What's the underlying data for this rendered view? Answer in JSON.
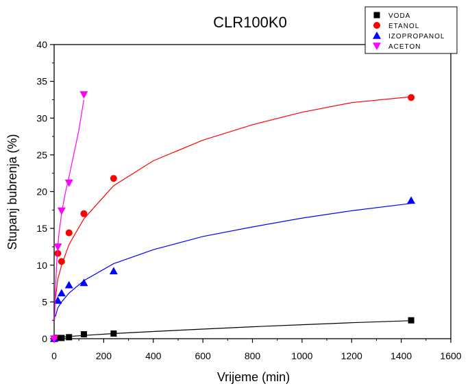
{
  "chart_data": {
    "type": "scatter",
    "title": "CLR100K0",
    "xlabel": "Vrijeme (min)",
    "ylabel": "Stupanj bubrenja (%)",
    "xlim": [
      0,
      1600
    ],
    "ylim": [
      0,
      40
    ],
    "x_ticks": [
      "0",
      "200",
      "400",
      "600",
      "800",
      "1000",
      "1200",
      "1400",
      "1600"
    ],
    "y_ticks": [
      "0",
      "5",
      "10",
      "15",
      "20",
      "25",
      "30",
      "35",
      "40"
    ],
    "grid": false,
    "legend_position": "top-right",
    "series": [
      {
        "name": "VODA",
        "color": "#000000",
        "marker": "square",
        "x": [
          0,
          15,
          30,
          60,
          120,
          240,
          1440
        ],
        "y": [
          0,
          0.1,
          0.1,
          0.2,
          0.6,
          0.7,
          2.5
        ],
        "fit_x": [
          5,
          20,
          60,
          120,
          240,
          400,
          600,
          800,
          1000,
          1200,
          1440
        ],
        "fit_y": [
          0.1,
          0.17,
          0.3,
          0.45,
          0.7,
          0.98,
          1.31,
          1.62,
          1.9,
          2.17,
          2.45
        ]
      },
      {
        "name": "ETANOL",
        "color": "#ff0000",
        "marker": "circle",
        "x": [
          0,
          15,
          30,
          60,
          120,
          240,
          1440
        ],
        "y": [
          0,
          11.6,
          10.5,
          14.4,
          17.0,
          21.8,
          32.8
        ],
        "fit_x": [
          5,
          15,
          30,
          60,
          120,
          240,
          400,
          600,
          800,
          1000,
          1200,
          1440
        ],
        "fit_y": [
          5.4,
          8.1,
          10.0,
          12.8,
          16.3,
          20.8,
          24.2,
          27.0,
          29.1,
          30.8,
          32.1,
          32.9
        ]
      },
      {
        "name": "IZOPROPANOL",
        "color": "#0000ff",
        "marker": "triangle-up",
        "x": [
          0,
          15,
          30,
          60,
          120,
          240,
          1440
        ],
        "y": [
          0,
          5.2,
          6.2,
          7.3,
          7.6,
          9.2,
          18.8
        ],
        "fit_x": [
          5,
          15,
          30,
          60,
          120,
          240,
          400,
          600,
          800,
          1000,
          1200,
          1440
        ],
        "fit_y": [
          3.0,
          4.2,
          5.0,
          6.2,
          7.9,
          10.2,
          12.1,
          13.9,
          15.2,
          16.4,
          17.4,
          18.4
        ]
      },
      {
        "name": "ACETON",
        "color": "#ff00ff",
        "marker": "triangle-down",
        "x": [
          0,
          15,
          30,
          60,
          120
        ],
        "y": [
          0,
          12.5,
          17.4,
          21.2,
          33.2
        ],
        "fit_x": [
          2,
          5,
          10,
          15,
          20,
          30,
          45,
          60,
          80,
          100,
          120
        ],
        "fit_y": [
          2.5,
          6.5,
          10.0,
          12.6,
          14.4,
          17.1,
          19.8,
          22.0,
          25.2,
          28.4,
          32.5
        ]
      }
    ]
  }
}
